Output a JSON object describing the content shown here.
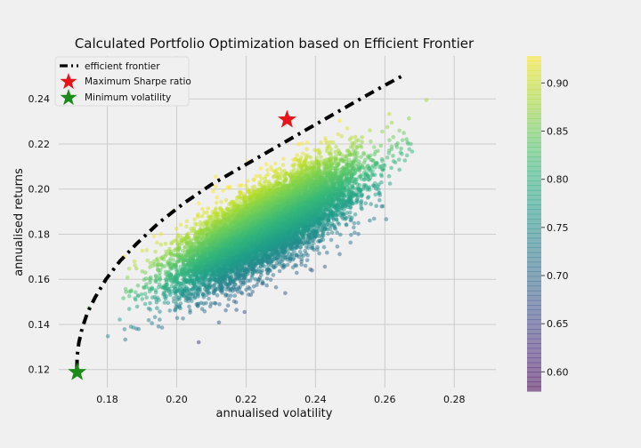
{
  "chart_data": {
    "type": "scatter",
    "title": "Calculated Portfolio Optimization based on Efficient Frontier",
    "xlabel": "annualised volatility",
    "ylabel": "annualised returns",
    "xlim": [
      0.166,
      0.292
    ],
    "ylim": [
      0.112,
      0.259
    ],
    "x_ticks": [
      0.18,
      0.2,
      0.22,
      0.24,
      0.26,
      0.28
    ],
    "x_tick_labels": [
      "0.18",
      "0.20",
      "0.22",
      "0.24",
      "0.26",
      "0.28"
    ],
    "y_ticks": [
      0.12,
      0.14,
      0.16,
      0.18,
      0.2,
      0.22,
      0.24
    ],
    "y_tick_labels": [
      "0.12",
      "0.14",
      "0.16",
      "0.18",
      "0.20",
      "0.22",
      "0.24"
    ],
    "grid": true,
    "legend": {
      "placement": "top-left",
      "entries": [
        {
          "label": "efficient frontier",
          "marker": "dash-dot line",
          "color": "#000000"
        },
        {
          "label": "Maximum Sharpe ratio",
          "marker": "star",
          "color": "#e8141b"
        },
        {
          "label": "Minimum volatility",
          "marker": "star",
          "color": "#1a8a1a"
        }
      ]
    },
    "colorbar": {
      "range": [
        0.58,
        0.928
      ],
      "ticks": [
        0.6,
        0.65,
        0.7,
        0.75,
        0.8,
        0.85,
        0.9
      ],
      "tick_labels": [
        "0.60",
        "0.65",
        "0.70",
        "0.75",
        "0.80",
        "0.85",
        "0.90"
      ],
      "colormap": "viridis"
    },
    "series": [
      {
        "name": "efficient frontier",
        "kind": "line",
        "points": [
          [
            0.1712,
            0.12
          ],
          [
            0.1713,
            0.126
          ],
          [
            0.1718,
            0.132
          ],
          [
            0.1727,
            0.138
          ],
          [
            0.1742,
            0.145
          ],
          [
            0.1765,
            0.152
          ],
          [
            0.1796,
            0.16
          ],
          [
            0.1836,
            0.168
          ],
          [
            0.1886,
            0.176
          ],
          [
            0.1948,
            0.185
          ],
          [
            0.2023,
            0.194
          ],
          [
            0.21,
            0.202
          ],
          [
            0.219,
            0.21
          ],
          [
            0.228,
            0.218
          ],
          [
            0.237,
            0.226
          ],
          [
            0.245,
            0.233
          ],
          [
            0.253,
            0.24
          ],
          [
            0.26,
            0.246
          ],
          [
            0.266,
            0.251
          ]
        ]
      },
      {
        "name": "Maximum Sharpe ratio",
        "kind": "point",
        "x": 0.2318,
        "y": 0.2308
      },
      {
        "name": "Minimum volatility",
        "kind": "point",
        "x": 0.1713,
        "y": 0.1188
      },
      {
        "kind": "scatter_cloud",
        "count": 10000,
        "center": [
          0.226,
          0.184
        ],
        "sd_vol": 0.0127,
        "sd_ret": 0.0133,
        "correlation": 0.76,
        "sharpe_range": [
          0.58,
          0.93
        ]
      }
    ]
  }
}
